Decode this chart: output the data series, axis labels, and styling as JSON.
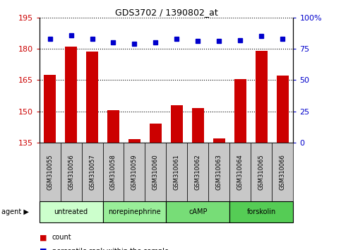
{
  "title": "GDS3702 / 1390802_at",
  "samples": [
    "GSM310055",
    "GSM310056",
    "GSM310057",
    "GSM310058",
    "GSM310059",
    "GSM310060",
    "GSM310061",
    "GSM310062",
    "GSM310063",
    "GSM310064",
    "GSM310065",
    "GSM310066"
  ],
  "counts": [
    167.5,
    181.0,
    178.5,
    150.5,
    136.5,
    144.0,
    153.0,
    151.5,
    137.0,
    165.5,
    179.0,
    167.0
  ],
  "percentiles": [
    83,
    86,
    83,
    80,
    79,
    80,
    83,
    81,
    81,
    82,
    85,
    83
  ],
  "agents": [
    {
      "label": "untreated",
      "start": 0,
      "end": 3,
      "color": "#ccffcc"
    },
    {
      "label": "norepinephrine",
      "start": 3,
      "end": 6,
      "color": "#99ee99"
    },
    {
      "label": "cAMP",
      "start": 6,
      "end": 9,
      "color": "#77dd77"
    },
    {
      "label": "forskolin",
      "start": 9,
      "end": 12,
      "color": "#55cc55"
    }
  ],
  "ylim_left": [
    135,
    195
  ],
  "yticks_left": [
    135,
    150,
    165,
    180,
    195
  ],
  "ylim_right": [
    0,
    100
  ],
  "yticks_right": [
    0,
    25,
    50,
    75,
    100
  ],
  "bar_color": "#cc0000",
  "dot_color": "#0000cc",
  "grid_color": "#000000",
  "bg_color": "#ffffff",
  "tick_bg": "#c8c8c8",
  "legend_count_color": "#cc0000",
  "legend_pct_color": "#0000cc",
  "left_axis_color": "#cc0000",
  "right_axis_color": "#0000cc"
}
